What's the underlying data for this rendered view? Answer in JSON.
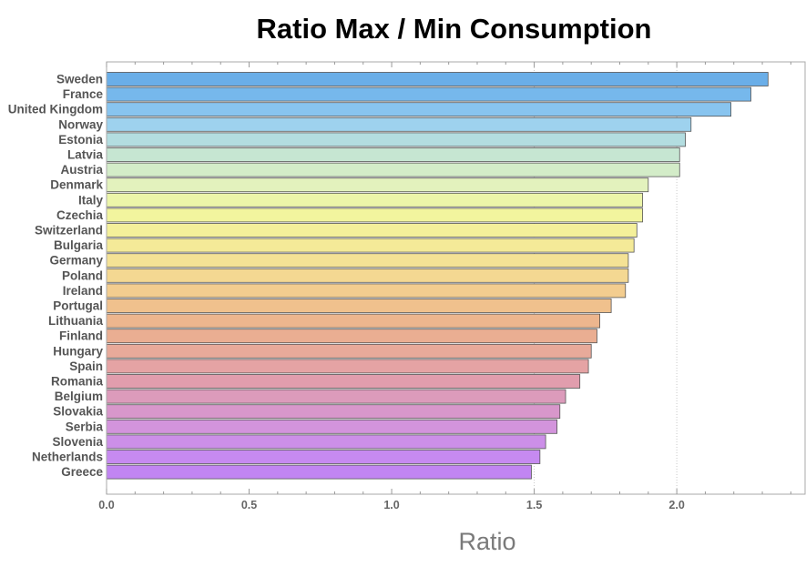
{
  "chart_data": {
    "type": "bar",
    "orientation": "horizontal",
    "title": "Ratio Max / Min Consumption",
    "xlabel": "Ratio",
    "ylabel": "",
    "xlim": [
      0,
      2.45
    ],
    "x_ticks": [
      "0.0",
      "0.5",
      "1.0",
      "1.5",
      "2.0"
    ],
    "grid": "vertical dotted at 1.5 and 2.0",
    "categories": [
      "Sweden",
      "France",
      "United Kingdom",
      "Norway",
      "Estonia",
      "Latvia",
      "Austria",
      "Denmark",
      "Italy",
      "Czechia",
      "Switzerland",
      "Bulgaria",
      "Germany",
      "Poland",
      "Ireland",
      "Portugal",
      "Lithuania",
      "Finland",
      "Hungary",
      "Spain",
      "Romania",
      "Belgium",
      "Slovakia",
      "Serbia",
      "Slovenia",
      "Netherlands",
      "Greece"
    ],
    "values": [
      2.32,
      2.26,
      2.19,
      2.05,
      2.03,
      2.01,
      2.01,
      1.9,
      1.88,
      1.88,
      1.86,
      1.85,
      1.83,
      1.83,
      1.82,
      1.77,
      1.73,
      1.72,
      1.7,
      1.69,
      1.66,
      1.61,
      1.59,
      1.58,
      1.54,
      1.52,
      1.49
    ],
    "colors": [
      "#6aaee8",
      "#76b8ec",
      "#88c4ef",
      "#9ed2ee",
      "#b3dde0",
      "#c6e6d2",
      "#d3ecc8",
      "#e3f2bd",
      "#ecf5a9",
      "#f2f59e",
      "#f4f09a",
      "#f4ea98",
      "#f4e295",
      "#f4d892",
      "#f3cd8f",
      "#f0c18d",
      "#edb68e",
      "#eaae92",
      "#e8aa9a",
      "#e5a3a4",
      "#e19dad",
      "#dc9bbb",
      "#d897cb",
      "#d394dc",
      "#cc8fe8",
      "#c68af0",
      "#c185f2"
    ],
    "bar_stroke": "#555555"
  }
}
